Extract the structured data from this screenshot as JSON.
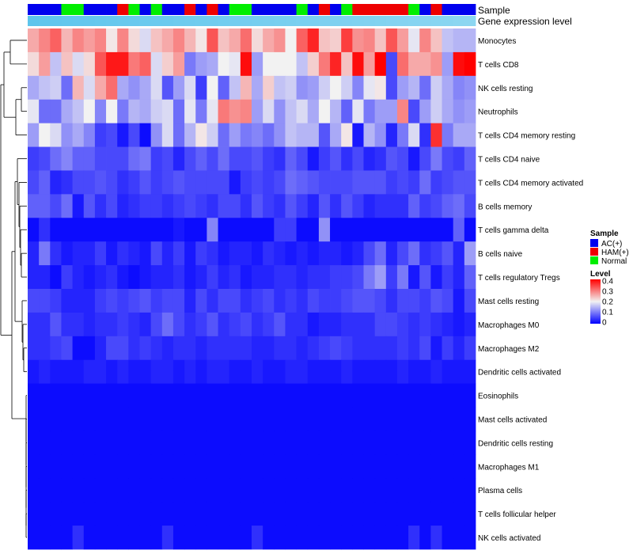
{
  "chart_data": {
    "type": "heatmap",
    "title": "",
    "annotations": {
      "sample_label": "Sample",
      "expression_label": "Gene expression level"
    },
    "row_labels": [
      "Monocytes",
      "T cells CD8",
      "NK cells resting",
      "Neutrophils",
      "T cells CD4 memory resting",
      "T cells CD4 naive",
      "T cells CD4 memory activated",
      "B cells memory",
      "T cells gamma delta",
      "B cells naive",
      "T cells regulatory  Tregs",
      "Mast cells resting",
      "Macrophages M0",
      "Macrophages M2",
      "Dendritic cells activated",
      "Eosinophils",
      "Mast cells activated",
      "Dendritic cells resting",
      "Macrophages M1",
      "Plasma cells",
      "T cells follicular helper",
      "NK cells activated"
    ],
    "sample_groups": [
      "AC(+)",
      "AC(+)",
      "AC(+)",
      "Normal",
      "Normal",
      "AC(+)",
      "AC(+)",
      "AC(+)",
      "HAM(+)",
      "Normal",
      "AC(+)",
      "Normal",
      "AC(+)",
      "AC(+)",
      "HAM(+)",
      "AC(+)",
      "HAM(+)",
      "AC(+)",
      "Normal",
      "Normal",
      "AC(+)",
      "AC(+)",
      "AC(+)",
      "AC(+)",
      "Normal",
      "AC(+)",
      "HAM(+)",
      "AC(+)",
      "Normal",
      "HAM(+)",
      "HAM(+)",
      "HAM(+)",
      "HAM(+)",
      "HAM(+)",
      "Normal",
      "AC(+)",
      "HAM(+)",
      "AC(+)",
      "AC(+)",
      "AC(+)"
    ],
    "values": [
      [
        0.26,
        0.29,
        0.32,
        0.25,
        0.29,
        0.27,
        0.29,
        0.21,
        0.29,
        0.22,
        0.18,
        0.24,
        0.26,
        0.29,
        0.25,
        0.21,
        0.33,
        0.24,
        0.26,
        0.31,
        0.22,
        0.26,
        0.28,
        0.2,
        0.32,
        0.37,
        0.24,
        0.23,
        0.35,
        0.28,
        0.29,
        0.24,
        0.33,
        0.27,
        0.19,
        0.29,
        0.24,
        0.16,
        0.15,
        0.15
      ],
      [
        0.22,
        0.27,
        0.16,
        0.24,
        0.18,
        0.22,
        0.33,
        0.38,
        0.38,
        0.3,
        0.32,
        0.18,
        0.23,
        0.27,
        0.1,
        0.13,
        0.14,
        0.2,
        0.19,
        0.39,
        0.13,
        0.2,
        0.2,
        0.2,
        0.16,
        0.23,
        0.3,
        0.37,
        0.24,
        0.39,
        0.27,
        0.4,
        0.06,
        0.31,
        0.26,
        0.26,
        0.28,
        0.13,
        0.39,
        0.43
      ],
      [
        0.14,
        0.16,
        0.17,
        0.09,
        0.25,
        0.18,
        0.26,
        0.31,
        0.14,
        0.12,
        0.14,
        0.18,
        0.07,
        0.13,
        0.18,
        0.05,
        0.2,
        0.08,
        0.16,
        0.25,
        0.14,
        0.23,
        0.16,
        0.17,
        0.12,
        0.13,
        0.17,
        0.2,
        0.17,
        0.11,
        0.19,
        0.21,
        0.06,
        0.13,
        0.15,
        0.09,
        0.17,
        0.14,
        0.11,
        0.12
      ],
      [
        0.19,
        0.09,
        0.09,
        0.14,
        0.16,
        0.2,
        0.11,
        0.2,
        0.1,
        0.15,
        0.14,
        0.17,
        0.18,
        0.09,
        0.19,
        0.1,
        0.19,
        0.3,
        0.28,
        0.29,
        0.13,
        0.18,
        0.12,
        0.16,
        0.18,
        0.14,
        0.2,
        0.15,
        0.08,
        0.19,
        0.1,
        0.13,
        0.13,
        0.29,
        0.06,
        0.13,
        0.17,
        0.14,
        0.12,
        0.13
      ],
      [
        0.13,
        0.2,
        0.18,
        0.12,
        0.14,
        0.11,
        0.05,
        0.06,
        0.02,
        0.06,
        0.01,
        0.12,
        0.18,
        0.09,
        0.15,
        0.21,
        0.17,
        0.09,
        0.13,
        0.1,
        0.11,
        0.09,
        0.12,
        0.16,
        0.15,
        0.15,
        0.07,
        0.14,
        0.21,
        0.02,
        0.15,
        0.12,
        0.03,
        0.1,
        0.18,
        0.04,
        0.36,
        0.1,
        0.14,
        0.14
      ],
      [
        0.05,
        0.06,
        0.09,
        0.11,
        0.08,
        0.08,
        0.06,
        0.06,
        0.06,
        0.09,
        0.1,
        0.05,
        0.06,
        0.03,
        0.06,
        0.08,
        0.06,
        0.09,
        0.06,
        0.06,
        0.07,
        0.05,
        0.04,
        0.08,
        0.06,
        0.02,
        0.05,
        0.07,
        0.04,
        0.06,
        0.03,
        0.04,
        0.07,
        0.06,
        0.02,
        0.06,
        0.1,
        0.06,
        0.05,
        0.08
      ],
      [
        0.06,
        0.08,
        0.03,
        0.04,
        0.06,
        0.06,
        0.07,
        0.06,
        0.04,
        0.05,
        0.07,
        0.05,
        0.06,
        0.07,
        0.06,
        0.06,
        0.06,
        0.06,
        0.02,
        0.05,
        0.06,
        0.05,
        0.06,
        0.09,
        0.08,
        0.07,
        0.06,
        0.06,
        0.06,
        0.07,
        0.07,
        0.07,
        0.05,
        0.06,
        0.05,
        0.09,
        0.05,
        0.06,
        0.07,
        0.07
      ],
      [
        0.08,
        0.08,
        0.06,
        0.09,
        0.02,
        0.07,
        0.04,
        0.06,
        0.03,
        0.04,
        0.05,
        0.05,
        0.04,
        0.05,
        0.06,
        0.05,
        0.04,
        0.06,
        0.06,
        0.04,
        0.07,
        0.05,
        0.04,
        0.07,
        0.05,
        0.03,
        0.07,
        0.04,
        0.07,
        0.05,
        0.03,
        0.04,
        0.04,
        0.04,
        0.08,
        0.05,
        0.06,
        0.08,
        0.09,
        0.06
      ],
      [
        0.01,
        0.04,
        0.01,
        0.01,
        0.01,
        0.01,
        0.01,
        0.01,
        0.01,
        0.01,
        0.01,
        0.01,
        0.01,
        0.02,
        0.01,
        0.01,
        0.11,
        0.01,
        0.01,
        0.01,
        0.01,
        0.01,
        0.05,
        0.05,
        0.01,
        0.01,
        0.12,
        0.01,
        0.01,
        0.01,
        0.01,
        0.01,
        0.01,
        0.01,
        0.01,
        0.01,
        0.01,
        0.01,
        0.08,
        0.01
      ],
      [
        0.03,
        0.1,
        0.04,
        0.02,
        0.03,
        0.03,
        0.05,
        0.02,
        0.04,
        0.03,
        0.02,
        0.06,
        0.03,
        0.05,
        0.02,
        0.05,
        0.04,
        0.02,
        0.03,
        0.03,
        0.02,
        0.04,
        0.03,
        0.02,
        0.03,
        0.02,
        0.03,
        0.03,
        0.02,
        0.03,
        0.06,
        0.09,
        0.03,
        0.06,
        0.09,
        0.04,
        0.05,
        0.07,
        0.03,
        0.13
      ],
      [
        0.03,
        0.03,
        0.01,
        0.05,
        0.03,
        0.02,
        0.03,
        0.04,
        0.02,
        0.01,
        0.02,
        0.03,
        0.03,
        0.04,
        0.02,
        0.03,
        0.05,
        0.03,
        0.04,
        0.02,
        0.03,
        0.03,
        0.04,
        0.04,
        0.03,
        0.04,
        0.04,
        0.05,
        0.05,
        0.06,
        0.1,
        0.13,
        0.05,
        0.1,
        0.02,
        0.07,
        0.02,
        0.05,
        0.03,
        0.08
      ],
      [
        0.06,
        0.06,
        0.05,
        0.03,
        0.03,
        0.03,
        0.05,
        0.06,
        0.05,
        0.06,
        0.07,
        0.05,
        0.06,
        0.06,
        0.03,
        0.06,
        0.04,
        0.06,
        0.06,
        0.04,
        0.05,
        0.06,
        0.04,
        0.05,
        0.04,
        0.06,
        0.05,
        0.05,
        0.06,
        0.07,
        0.07,
        0.06,
        0.04,
        0.06,
        0.06,
        0.05,
        0.07,
        0.06,
        0.02,
        0.06
      ],
      [
        0.04,
        0.04,
        0.07,
        0.04,
        0.04,
        0.03,
        0.04,
        0.04,
        0.05,
        0.04,
        0.03,
        0.06,
        0.09,
        0.06,
        0.04,
        0.05,
        0.07,
        0.04,
        0.05,
        0.06,
        0.04,
        0.05,
        0.07,
        0.04,
        0.04,
        0.02,
        0.03,
        0.03,
        0.04,
        0.04,
        0.04,
        0.06,
        0.06,
        0.05,
        0.04,
        0.05,
        0.04,
        0.03,
        0.02,
        0.03
      ],
      [
        0.04,
        0.04,
        0.05,
        0.06,
        0.01,
        0.01,
        0.03,
        0.06,
        0.06,
        0.04,
        0.05,
        0.04,
        0.03,
        0.04,
        0.04,
        0.03,
        0.04,
        0.04,
        0.04,
        0.04,
        0.03,
        0.03,
        0.04,
        0.04,
        0.03,
        0.04,
        0.05,
        0.06,
        0.05,
        0.04,
        0.04,
        0.04,
        0.04,
        0.05,
        0.04,
        0.06,
        0.02,
        0.05,
        0.03,
        0.05
      ],
      [
        0.02,
        0.03,
        0.02,
        0.02,
        0.02,
        0.03,
        0.03,
        0.02,
        0.03,
        0.02,
        0.02,
        0.03,
        0.03,
        0.02,
        0.03,
        0.02,
        0.03,
        0.03,
        0.02,
        0.02,
        0.03,
        0.02,
        0.02,
        0.03,
        0.03,
        0.02,
        0.02,
        0.02,
        0.03,
        0.02,
        0.02,
        0.02,
        0.02,
        0.03,
        0.02,
        0.02,
        0.03,
        0.02,
        0.02,
        0.02
      ],
      [
        0.01,
        0.01,
        0.01,
        0.01,
        0.01,
        0.01,
        0.01,
        0.01,
        0.01,
        0.01,
        0.01,
        0.01,
        0.01,
        0.01,
        0.01,
        0.01,
        0.01,
        0.01,
        0.01,
        0.01,
        0.01,
        0.01,
        0.01,
        0.01,
        0.01,
        0.01,
        0.01,
        0.01,
        0.01,
        0.01,
        0.01,
        0.01,
        0.01,
        0.01,
        0.01,
        0.01,
        0.01,
        0.01,
        0.01,
        0.01
      ],
      [
        0.01,
        0.01,
        0.01,
        0.01,
        0.01,
        0.01,
        0.01,
        0.01,
        0.01,
        0.01,
        0.01,
        0.01,
        0.01,
        0.01,
        0.01,
        0.01,
        0.01,
        0.01,
        0.01,
        0.01,
        0.01,
        0.01,
        0.01,
        0.01,
        0.01,
        0.01,
        0.01,
        0.01,
        0.01,
        0.01,
        0.01,
        0.01,
        0.01,
        0.01,
        0.01,
        0.01,
        0.01,
        0.01,
        0.01,
        0.01
      ],
      [
        0.01,
        0.01,
        0.01,
        0.01,
        0.01,
        0.01,
        0.01,
        0.01,
        0.01,
        0.01,
        0.01,
        0.01,
        0.01,
        0.01,
        0.01,
        0.01,
        0.01,
        0.01,
        0.01,
        0.01,
        0.01,
        0.01,
        0.01,
        0.01,
        0.01,
        0.01,
        0.01,
        0.01,
        0.01,
        0.01,
        0.01,
        0.01,
        0.01,
        0.01,
        0.01,
        0.01,
        0.01,
        0.01,
        0.01,
        0.01
      ],
      [
        0.01,
        0.01,
        0.01,
        0.01,
        0.01,
        0.01,
        0.01,
        0.01,
        0.01,
        0.01,
        0.01,
        0.01,
        0.01,
        0.01,
        0.01,
        0.01,
        0.01,
        0.01,
        0.01,
        0.01,
        0.01,
        0.01,
        0.01,
        0.01,
        0.01,
        0.01,
        0.01,
        0.01,
        0.01,
        0.01,
        0.01,
        0.01,
        0.01,
        0.01,
        0.01,
        0.01,
        0.01,
        0.01,
        0.01,
        0.01
      ],
      [
        0.01,
        0.01,
        0.01,
        0.01,
        0.01,
        0.01,
        0.01,
        0.01,
        0.01,
        0.01,
        0.01,
        0.01,
        0.01,
        0.01,
        0.01,
        0.01,
        0.01,
        0.01,
        0.01,
        0.01,
        0.01,
        0.01,
        0.01,
        0.01,
        0.01,
        0.01,
        0.01,
        0.01,
        0.01,
        0.01,
        0.01,
        0.01,
        0.01,
        0.01,
        0.01,
        0.01,
        0.01,
        0.01,
        0.01,
        0.01
      ],
      [
        0.01,
        0.01,
        0.01,
        0.01,
        0.01,
        0.01,
        0.01,
        0.01,
        0.01,
        0.01,
        0.01,
        0.01,
        0.01,
        0.01,
        0.01,
        0.01,
        0.01,
        0.01,
        0.01,
        0.01,
        0.01,
        0.01,
        0.01,
        0.01,
        0.01,
        0.01,
        0.01,
        0.01,
        0.01,
        0.01,
        0.01,
        0.01,
        0.01,
        0.01,
        0.01,
        0.01,
        0.01,
        0.01,
        0.01,
        0.01
      ],
      [
        0.01,
        0.01,
        0.01,
        0.01,
        0.04,
        0.01,
        0.01,
        0.01,
        0.01,
        0.01,
        0.01,
        0.01,
        0.04,
        0.01,
        0.01,
        0.01,
        0.01,
        0.01,
        0.01,
        0.01,
        0.04,
        0.01,
        0.01,
        0.01,
        0.01,
        0.01,
        0.01,
        0.01,
        0.01,
        0.01,
        0.01,
        0.01,
        0.01,
        0.01,
        0.04,
        0.01,
        0.04,
        0.01,
        0.01,
        0.01
      ]
    ],
    "expression_level": [
      0.97,
      0.96,
      0.95,
      0.94,
      0.93,
      0.92,
      0.91,
      0.9,
      0.89,
      0.88,
      0.87,
      0.86,
      0.85,
      0.84,
      0.83,
      0.82,
      0.81,
      0.8,
      0.79,
      0.78,
      0.77,
      0.76,
      0.75,
      0.74,
      0.73,
      0.72,
      0.71,
      0.7,
      0.69,
      0.68,
      0.67,
      0.66,
      0.65,
      0.64,
      0.63,
      0.62,
      0.61,
      0.6,
      0.59,
      0.58
    ],
    "legend": {
      "sample": {
        "title": "Sample",
        "items": [
          {
            "label": "AC(+)",
            "color": "#0000EE"
          },
          {
            "label": "HAM(+)",
            "color": "#EE0000"
          },
          {
            "label": "Normal",
            "color": "#00EE00"
          }
        ]
      },
      "level": {
        "title": "Level",
        "ticks": [
          "0.4",
          "0.3",
          "0.2",
          "0.1",
          "0"
        ],
        "tick_values": [
          0.4,
          0.3,
          0.2,
          0.1,
          0
        ],
        "min": 0,
        "max": 0.4
      }
    },
    "colors": {
      "low": "#0000FF",
      "mid": "#F2F2F2",
      "high": "#FF0000",
      "midpoint": 0.2,
      "expression_low": "#CFEFF9",
      "expression_high": "#5BC4EC"
    }
  }
}
